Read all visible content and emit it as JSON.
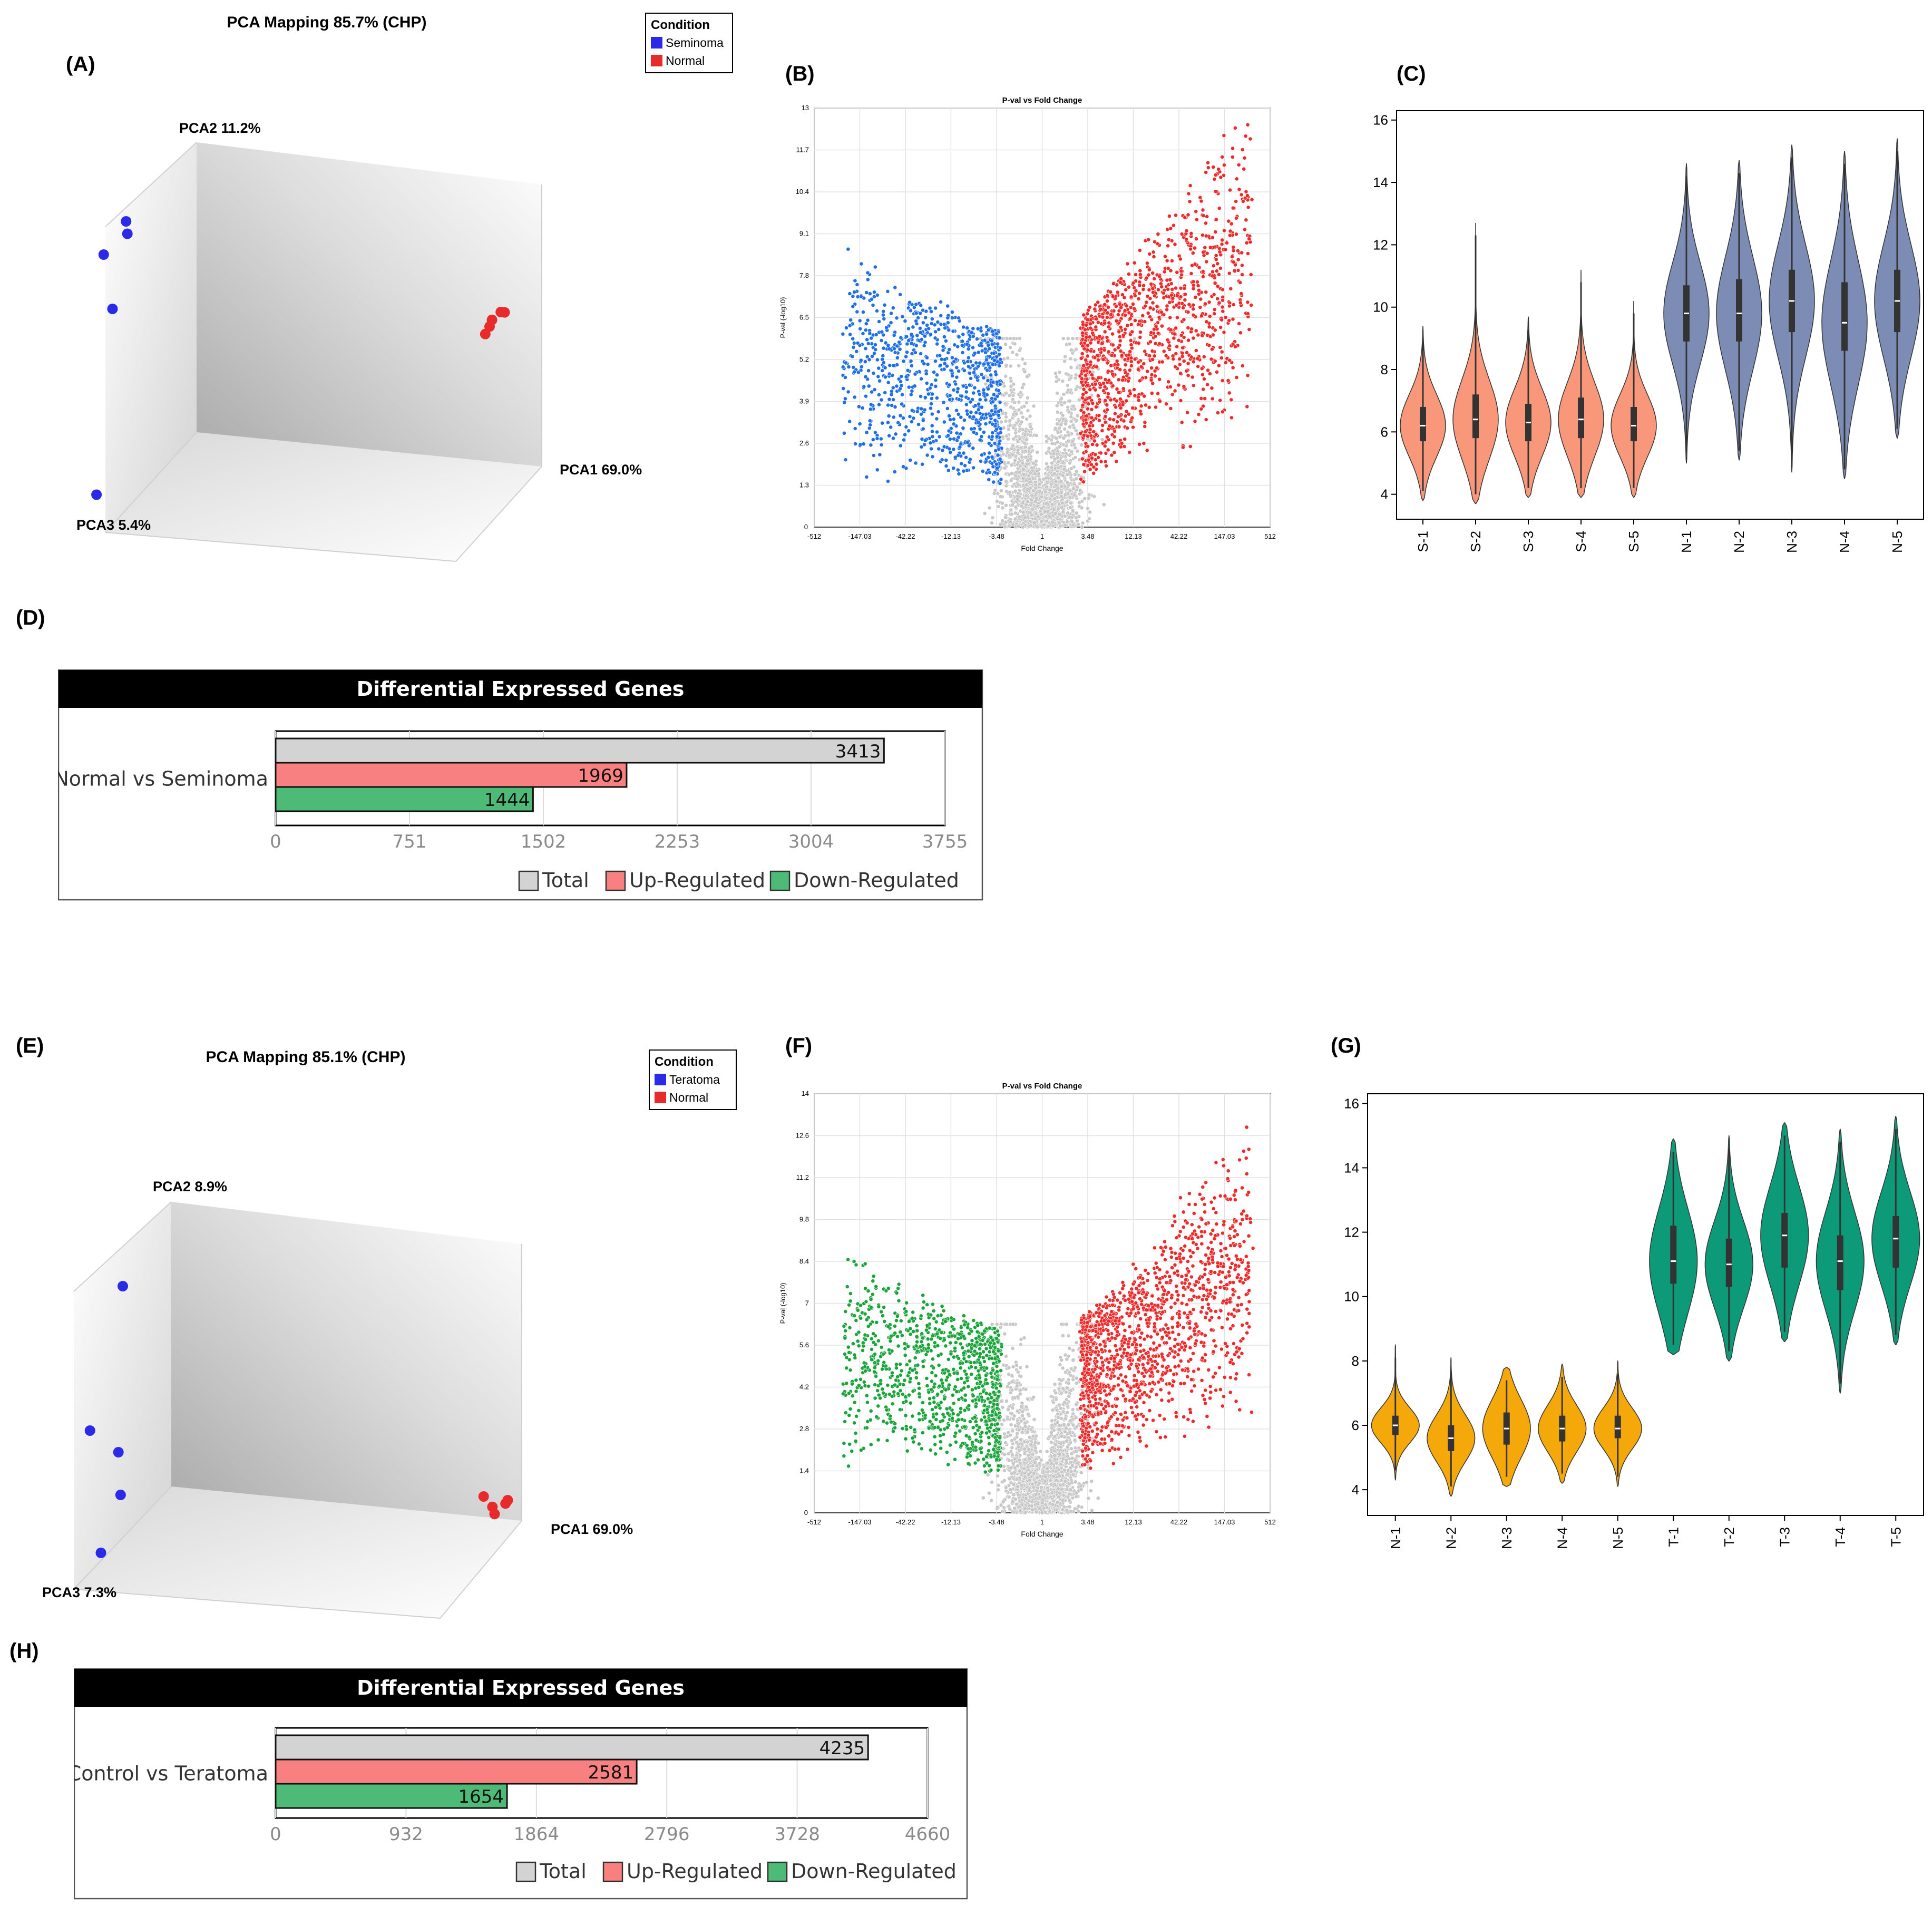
{
  "panels": {
    "A": {
      "label": "(A)",
      "chart_data": {
        "type": "scatter",
        "title": "PCA Mapping 85.7% (CHP)",
        "axes": {
          "x": "PCA1 69.0%",
          "y": "PCA2 11.2%",
          "z": "PCA3 5.4%"
        },
        "legend": {
          "title": "Condition",
          "entries": [
            {
              "name": "Seminoma",
              "color": "#2a2ae8"
            },
            {
              "name": "Normal",
              "color": "#e82a2a"
            }
          ]
        },
        "groups": [
          {
            "name": "Seminoma",
            "points": [
              [
                -0.95,
                0.75,
                0.1
              ],
              [
                -0.85,
                0.85,
                0.0
              ],
              [
                -0.84,
                0.82,
                0.05
              ],
              [
                -0.9,
                0.55,
                0.2
              ],
              [
                -0.92,
                0.1,
                0.95
              ]
            ]
          },
          {
            "name": "Normal",
            "points": [
              [
                0.95,
                0.42,
                0.0
              ],
              [
                0.97,
                0.43,
                0.02
              ],
              [
                0.9,
                0.38,
                0.05
              ],
              [
                0.91,
                0.4,
                0.03
              ],
              [
                0.88,
                0.35,
                0.06
              ]
            ]
          }
        ]
      }
    },
    "B": {
      "label": "(B)",
      "chart_data": {
        "type": "scatter",
        "title": "P-val vs Fold Change",
        "xlabel": "Fold Change",
        "ylabel": "P-val (-log10)",
        "xticks": [
          "-512",
          "-147.03",
          "-42.22",
          "-12.13",
          "-3.48",
          "1",
          "3.48",
          "12.13",
          "42.22",
          "147.03",
          "512"
        ],
        "yticks": [
          "1.3",
          "2.6",
          "3.9",
          "5.2",
          "6.5",
          "7.8",
          "9.1",
          "10.4",
          "11.7",
          "13"
        ],
        "ylim": [
          0,
          13
        ],
        "series": [
          {
            "name": "Down-Regulated",
            "color": "#1f6fe8",
            "count": 1444
          },
          {
            "name": "Not significant",
            "color": "#c8c8c8"
          },
          {
            "name": "Up-Regulated",
            "color": "#f02a2a",
            "count": 1969
          }
        ]
      }
    },
    "C": {
      "label": "(C)",
      "chart_data": {
        "type": "violin",
        "categories": [
          "S-1",
          "S-2",
          "S-3",
          "S-4",
          "S-5",
          "N-1",
          "N-2",
          "N-3",
          "N-4",
          "N-5"
        ],
        "yticks": [
          "4",
          "6",
          "8",
          "10",
          "12",
          "14",
          "16"
        ],
        "ylim": [
          3.2,
          16.3
        ],
        "medians": [
          6.2,
          6.4,
          6.3,
          6.4,
          6.2,
          9.8,
          9.8,
          10.2,
          9.5,
          10.2
        ],
        "min": [
          3.8,
          3.7,
          3.9,
          3.9,
          3.9,
          5.0,
          5.1,
          4.7,
          4.5,
          5.8
        ],
        "max": [
          9.4,
          12.7,
          9.7,
          11.2,
          10.2,
          14.6,
          14.7,
          15.2,
          15.0,
          15.4
        ],
        "q1": [
          5.7,
          5.8,
          5.7,
          5.8,
          5.7,
          8.9,
          8.9,
          9.2,
          8.6,
          9.2
        ],
        "q3": [
          6.8,
          7.2,
          6.9,
          7.1,
          6.8,
          10.7,
          10.9,
          11.2,
          10.8,
          11.2
        ],
        "colors": [
          "#f9977a",
          "#f9977a",
          "#f9977a",
          "#f9977a",
          "#f9977a",
          "#7c8cb5",
          "#7c8cb5",
          "#7c8cb5",
          "#7c8cb5",
          "#7c8cb5"
        ]
      }
    },
    "D": {
      "label": "(D)",
      "chart_data": {
        "type": "bar",
        "title": "Differential Expressed Genes",
        "categories": [
          "Normal vs Seminoma"
        ],
        "series": [
          {
            "name": "Total",
            "values": [
              3413
            ],
            "color": "#d3d3d3"
          },
          {
            "name": "Up-Regulated",
            "values": [
              1969
            ],
            "color": "#f88080"
          },
          {
            "name": "Down-Regulated",
            "values": [
              1444
            ],
            "color": "#4dbb77"
          }
        ],
        "xticks": [
          "0",
          "751",
          "1502",
          "2253",
          "3004",
          "3755"
        ],
        "xlim": [
          0,
          3755
        ]
      }
    },
    "E": {
      "label": "(E)",
      "chart_data": {
        "type": "scatter",
        "title": "PCA Mapping 85.1% (CHP)",
        "axes": {
          "x": "PCA1 69.0%",
          "y": "PCA2 8.9%",
          "z": "PCA3 7.3%"
        },
        "legend": {
          "title": "Condition",
          "entries": [
            {
              "name": "Teratoma",
              "color": "#2a2ae8"
            },
            {
              "name": "Normal",
              "color": "#e82a2a"
            }
          ]
        },
        "groups": [
          {
            "name": "Teratoma",
            "points": [
              [
                -0.8,
                0.85,
                0.0
              ],
              [
                -0.95,
                0.45,
                0.1
              ],
              [
                -0.82,
                0.4,
                0.0
              ],
              [
                -0.81,
                0.28,
                0.05
              ],
              [
                -0.9,
                0.05,
                0.9
              ]
            ]
          },
          {
            "name": "Normal",
            "points": [
              [
                0.85,
                0.28,
                0.0
              ],
              [
                0.89,
                0.25,
                0.02
              ],
              [
                0.9,
                0.23,
                0.03
              ],
              [
                0.95,
                0.26,
                0.01
              ],
              [
                0.96,
                0.27,
                0.0
              ]
            ]
          }
        ]
      }
    },
    "F": {
      "label": "(F)",
      "chart_data": {
        "type": "scatter",
        "title": "P-val vs Fold Change",
        "xlabel": "Fold Change",
        "ylabel": "P-val (-log10)",
        "xticks": [
          "-512",
          "-147.03",
          "-42.22",
          "-12.13",
          "-3.48",
          "1",
          "3.48",
          "12.13",
          "42.22",
          "147.03",
          "512"
        ],
        "yticks": [
          "1.4",
          "2.8",
          "4.2",
          "5.6",
          "7",
          "8.4",
          "9.8",
          "11.2",
          "12.6",
          "14"
        ],
        "ylim": [
          0,
          14
        ],
        "series": [
          {
            "name": "Down-Regulated",
            "color": "#1aa53a",
            "count": 1654
          },
          {
            "name": "Not significant",
            "color": "#c8c8c8"
          },
          {
            "name": "Up-Regulated",
            "color": "#f02a2a",
            "count": 2581
          }
        ]
      }
    },
    "G": {
      "label": "(G)",
      "chart_data": {
        "type": "violin",
        "categories": [
          "N-1",
          "N-2",
          "N-3",
          "N-4",
          "N-5",
          "T-1",
          "T-2",
          "T-3",
          "T-4",
          "T-5"
        ],
        "yticks": [
          "4",
          "6",
          "8",
          "10",
          "12",
          "14",
          "16"
        ],
        "ylim": [
          3.2,
          16.3
        ],
        "medians": [
          6.0,
          5.6,
          5.9,
          5.9,
          5.9,
          11.1,
          11.0,
          11.9,
          11.1,
          11.8
        ],
        "min": [
          4.3,
          3.8,
          4.1,
          4.2,
          4.1,
          8.2,
          8.0,
          8.6,
          7.0,
          8.5
        ],
        "max": [
          8.5,
          8.1,
          7.8,
          7.9,
          8.0,
          14.9,
          15.0,
          15.4,
          15.2,
          15.6
        ],
        "q1": [
          5.7,
          5.2,
          5.4,
          5.5,
          5.6,
          10.4,
          10.3,
          10.9,
          10.2,
          10.9
        ],
        "q3": [
          6.3,
          6.0,
          6.4,
          6.3,
          6.3,
          12.2,
          11.8,
          12.6,
          11.9,
          12.5
        ],
        "colors": [
          "#f5a80a",
          "#f5a80a",
          "#f5a80a",
          "#f5a80a",
          "#f5a80a",
          "#0d9a78",
          "#0d9a78",
          "#0d9a78",
          "#0d9a78",
          "#0d9a78"
        ]
      }
    },
    "H": {
      "label": "(H)",
      "chart_data": {
        "type": "bar",
        "title": "Differential Expressed Genes",
        "categories": [
          "Control vs Teratoma"
        ],
        "series": [
          {
            "name": "Total",
            "values": [
              4235
            ],
            "color": "#d3d3d3"
          },
          {
            "name": "Up-Regulated",
            "values": [
              2581
            ],
            "color": "#f88080"
          },
          {
            "name": "Down-Regulated",
            "values": [
              1654
            ],
            "color": "#4dbb77"
          }
        ],
        "xticks": [
          "0",
          "932",
          "1864",
          "2796",
          "3728",
          "4660"
        ],
        "xlim": [
          0,
          4660
        ]
      }
    }
  }
}
